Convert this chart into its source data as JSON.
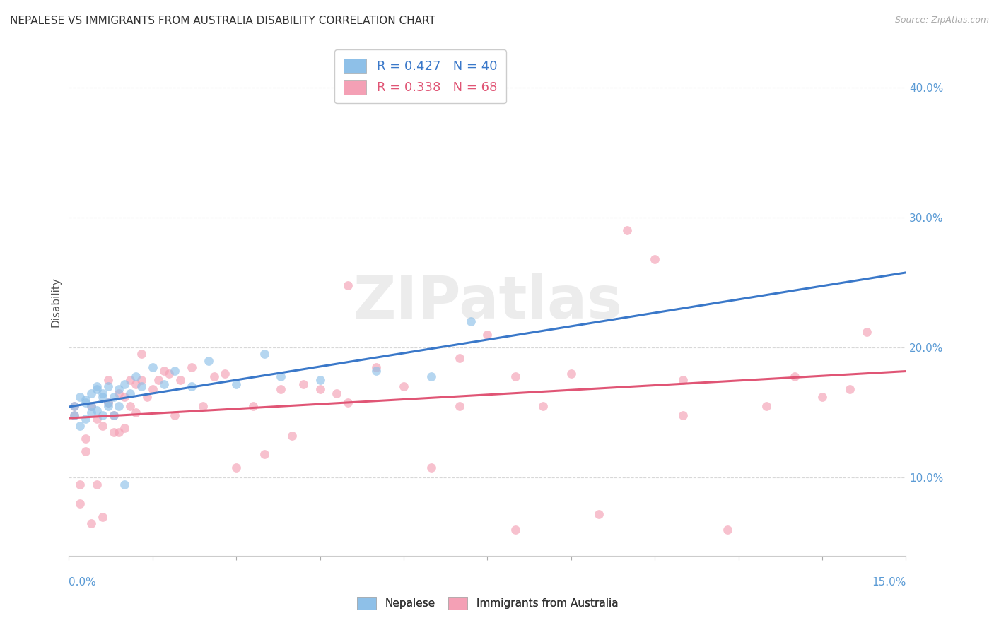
{
  "title": "NEPALESE VS IMMIGRANTS FROM AUSTRALIA DISABILITY CORRELATION CHART",
  "source": "Source: ZipAtlas.com",
  "ylabel": "Disability",
  "ytick_labels": [
    "10.0%",
    "20.0%",
    "30.0%",
    "40.0%"
  ],
  "ytick_values": [
    0.1,
    0.2,
    0.3,
    0.4
  ],
  "xlim": [
    0.0,
    0.15
  ],
  "ylim": [
    0.04,
    0.43
  ],
  "watermark": "ZIPatlas",
  "legend_top": [
    {
      "label": "R = 0.427   N = 40",
      "color": "#5b9bd5"
    },
    {
      "label": "R = 0.338   N = 68",
      "color": "#e8607a"
    }
  ],
  "legend_bottom": [
    {
      "label": "Nepalese",
      "color": "#8ec0e8"
    },
    {
      "label": "Immigrants from Australia",
      "color": "#f4a0b5"
    }
  ],
  "nepalese_x": [
    0.001,
    0.001,
    0.002,
    0.002,
    0.003,
    0.003,
    0.003,
    0.004,
    0.004,
    0.004,
    0.005,
    0.005,
    0.005,
    0.006,
    0.006,
    0.006,
    0.007,
    0.007,
    0.007,
    0.008,
    0.008,
    0.009,
    0.009,
    0.01,
    0.01,
    0.011,
    0.012,
    0.013,
    0.015,
    0.017,
    0.019,
    0.022,
    0.025,
    0.03,
    0.035,
    0.038,
    0.045,
    0.055,
    0.065,
    0.072
  ],
  "nepalese_y": [
    0.155,
    0.148,
    0.162,
    0.14,
    0.145,
    0.158,
    0.16,
    0.15,
    0.165,
    0.155,
    0.17,
    0.152,
    0.168,
    0.162,
    0.148,
    0.165,
    0.155,
    0.17,
    0.158,
    0.162,
    0.148,
    0.168,
    0.155,
    0.095,
    0.172,
    0.165,
    0.178,
    0.17,
    0.185,
    0.172,
    0.182,
    0.17,
    0.19,
    0.172,
    0.195,
    0.178,
    0.175,
    0.182,
    0.178,
    0.22
  ],
  "australia_x": [
    0.001,
    0.001,
    0.002,
    0.002,
    0.003,
    0.003,
    0.004,
    0.004,
    0.005,
    0.005,
    0.006,
    0.006,
    0.007,
    0.007,
    0.008,
    0.008,
    0.009,
    0.009,
    0.01,
    0.01,
    0.011,
    0.011,
    0.012,
    0.012,
    0.013,
    0.013,
    0.014,
    0.015,
    0.016,
    0.017,
    0.018,
    0.019,
    0.02,
    0.022,
    0.024,
    0.026,
    0.028,
    0.03,
    0.033,
    0.035,
    0.038,
    0.04,
    0.042,
    0.045,
    0.048,
    0.05,
    0.055,
    0.06,
    0.065,
    0.07,
    0.075,
    0.08,
    0.085,
    0.09,
    0.095,
    0.1,
    0.105,
    0.11,
    0.118,
    0.125,
    0.13,
    0.135,
    0.14,
    0.143,
    0.05,
    0.07,
    0.08,
    0.11
  ],
  "australia_y": [
    0.155,
    0.148,
    0.095,
    0.08,
    0.12,
    0.13,
    0.065,
    0.155,
    0.095,
    0.145,
    0.07,
    0.14,
    0.175,
    0.158,
    0.148,
    0.135,
    0.165,
    0.135,
    0.162,
    0.138,
    0.155,
    0.175,
    0.172,
    0.15,
    0.175,
    0.195,
    0.162,
    0.168,
    0.175,
    0.182,
    0.18,
    0.148,
    0.175,
    0.185,
    0.155,
    0.178,
    0.18,
    0.108,
    0.155,
    0.118,
    0.168,
    0.132,
    0.172,
    0.168,
    0.165,
    0.158,
    0.185,
    0.17,
    0.108,
    0.192,
    0.21,
    0.06,
    0.155,
    0.18,
    0.072,
    0.29,
    0.268,
    0.175,
    0.06,
    0.155,
    0.178,
    0.162,
    0.168,
    0.212,
    0.248,
    0.155,
    0.178,
    0.148
  ],
  "nepalese_color": "#8ec0e8",
  "australia_color": "#f4a0b5",
  "nepalese_line_color": "#3a78c9",
  "australia_line_color": "#e05575",
  "title_color": "#333333",
  "axis_color": "#5b9bd5",
  "grid_color": "#d8d8d8",
  "background_color": "#ffffff",
  "marker_size": 85,
  "marker_alpha": 0.65,
  "R_nepalese": 0.427,
  "N_nepalese": 40,
  "R_australia": 0.338,
  "N_australia": 68
}
